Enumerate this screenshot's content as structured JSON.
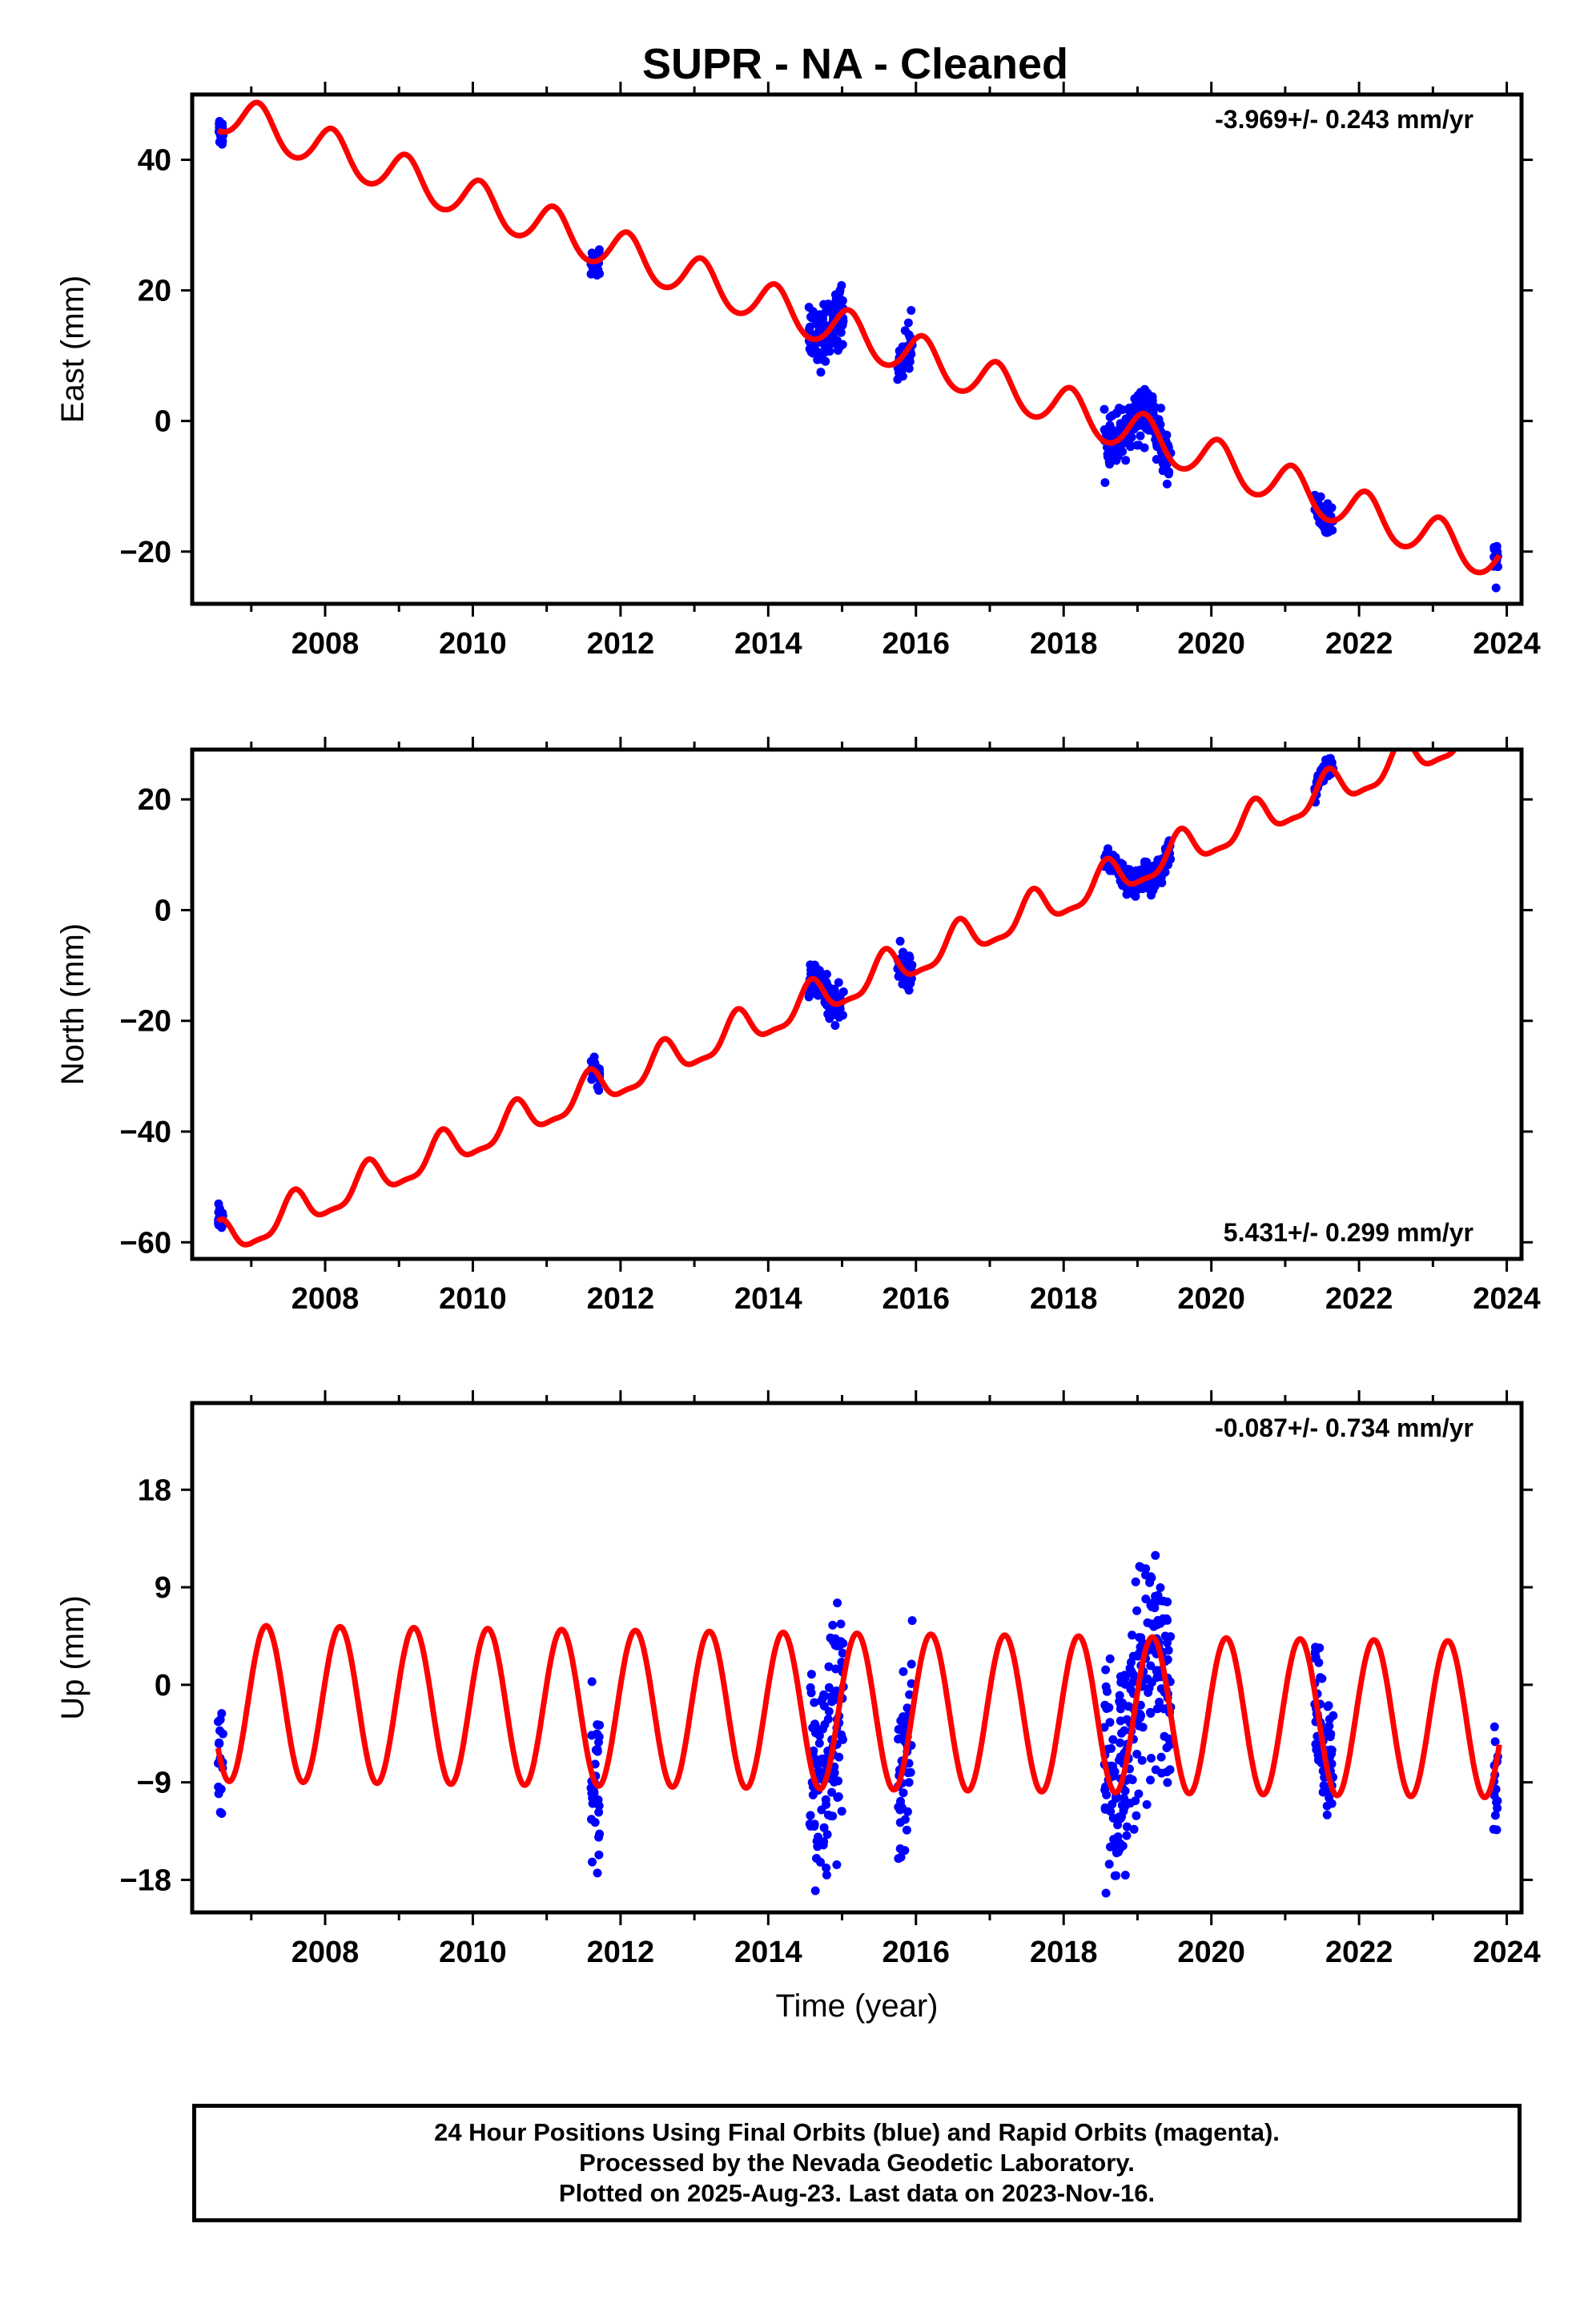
{
  "title": "SUPR  - NA - Cleaned",
  "colors": {
    "data": "#0000ff",
    "model": "#ff0000",
    "axis": "#000000"
  },
  "chart_data": [
    {
      "type": "scatter",
      "component": "east",
      "ylabel": "East (mm)",
      "xlabel": "",
      "rate_label": "-3.969+/- 0.243 mm/yr",
      "rate_position": "top-right",
      "xlim": [
        2006.2,
        2024.2
      ],
      "ylim": [
        -28,
        50
      ],
      "xticks": [
        2008,
        2010,
        2012,
        2014,
        2016,
        2018,
        2020,
        2022,
        2024
      ],
      "yticks": [
        40,
        20,
        0,
        -20
      ],
      "model": {
        "slope": -3.969,
        "ref_epoch": 2006.6,
        "offset": 47.2,
        "amp_annual": 3.2,
        "phase_annual": 1.0,
        "amp_semi": 0.3,
        "phase_semi": 0.2
      },
      "observation_segments": [
        {
          "t0": 2006.55,
          "t1": 2006.62,
          "scatter": 1.2
        },
        {
          "t0": 2011.6,
          "t1": 2011.72,
          "scatter": 1.2
        },
        {
          "t0": 2014.55,
          "t1": 2015.02,
          "scatter": 2.2
        },
        {
          "t0": 2015.75,
          "t1": 2015.95,
          "scatter": 1.8
        },
        {
          "t0": 2018.55,
          "t1": 2019.45,
          "scatter": 1.8
        },
        {
          "t0": 2021.4,
          "t1": 2021.65,
          "scatter": 1.3
        },
        {
          "t0": 2023.82,
          "t1": 2023.88,
          "scatter": 1.5
        }
      ]
    },
    {
      "type": "scatter",
      "component": "north",
      "ylabel": "North (mm)",
      "xlabel": "",
      "rate_label": "5.431+/- 0.299 mm/yr",
      "rate_position": "bottom-right",
      "xlim": [
        2006.2,
        2024.2
      ],
      "ylim": [
        -63,
        29
      ],
      "xticks": [
        2008,
        2010,
        2012,
        2014,
        2016,
        2018,
        2020,
        2022,
        2024
      ],
      "yticks": [
        20,
        0,
        -20,
        -40,
        -60
      ],
      "model": {
        "slope": 5.431,
        "ref_epoch": 2006.6,
        "offset": -60.0,
        "amp_annual": 3.2,
        "phase_annual": 4.2,
        "amp_semi": 1.0,
        "phase_semi": 0.5
      },
      "observation_segments": [
        {
          "t0": 2006.55,
          "t1": 2006.62,
          "scatter": 1.0
        },
        {
          "t0": 2011.6,
          "t1": 2011.72,
          "scatter": 1.0
        },
        {
          "t0": 2014.55,
          "t1": 2015.02,
          "scatter": 1.6
        },
        {
          "t0": 2015.75,
          "t1": 2015.95,
          "scatter": 1.4
        },
        {
          "t0": 2018.55,
          "t1": 2019.45,
          "scatter": 1.2
        },
        {
          "t0": 2021.4,
          "t1": 2021.65,
          "scatter": 1.0
        },
        {
          "t0": 2023.82,
          "t1": 2023.88,
          "scatter": 1.2
        }
      ]
    },
    {
      "type": "scatter",
      "component": "up",
      "ylabel": "Up (mm)",
      "xlabel": "Time (year)",
      "rate_label": "-0.087+/- 0.734 mm/yr",
      "rate_position": "top-right",
      "xlim": [
        2006.2,
        2024.2
      ],
      "ylim": [
        -21,
        26
      ],
      "xticks": [
        2008,
        2010,
        2012,
        2014,
        2016,
        2018,
        2020,
        2022,
        2024
      ],
      "yticks": [
        18,
        9,
        0,
        -9,
        -18
      ],
      "model": {
        "slope": -0.087,
        "ref_epoch": 2006.6,
        "offset": -1.7,
        "amp_annual": 7.2,
        "phase_annual": 0.3,
        "amp_semi": 0.0,
        "phase_semi": 0.0
      },
      "observation_segments": [
        {
          "t0": 2006.55,
          "t1": 2006.62,
          "scatter": 3.0
        },
        {
          "t0": 2011.6,
          "t1": 2011.72,
          "scatter": 4.0
        },
        {
          "t0": 2014.55,
          "t1": 2015.02,
          "scatter": 5.0
        },
        {
          "t0": 2015.75,
          "t1": 2015.95,
          "scatter": 4.0
        },
        {
          "t0": 2018.55,
          "t1": 2019.45,
          "scatter": 5.0
        },
        {
          "t0": 2021.4,
          "t1": 2021.65,
          "scatter": 3.5
        },
        {
          "t0": 2023.82,
          "t1": 2023.88,
          "scatter": 3.0
        }
      ]
    }
  ],
  "footer": {
    "line1": "24 Hour Positions Using Final Orbits (blue) and Rapid Orbits (magenta).",
    "line2": "Processed by the Nevada Geodetic Laboratory.",
    "line3": "Plotted on 2025-Aug-23. Last data on 2023-Nov-16."
  }
}
